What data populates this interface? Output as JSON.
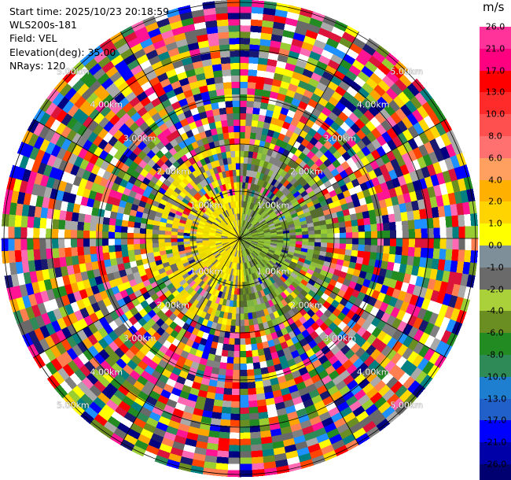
{
  "info": {
    "start_time": "Start time: 2025/10/23 20:18:59",
    "instrument": "WLS200s-181",
    "field": "Field: VEL",
    "elevation": "Elevation(deg): 35.00",
    "nrays": "NRays: 120"
  },
  "colorbar": {
    "unit": "m/s",
    "ticks": [
      "26.0",
      "21.0",
      "17.0",
      "13.0",
      "10.0",
      "8.0",
      "6.0",
      "4.0",
      "2.0",
      "1.0",
      "0.0",
      "-1.0",
      "-2.0",
      "-4.0",
      "-6.0",
      "-8.0",
      "-10.0",
      "-13.0",
      "-17.0",
      "-21.0",
      "-26.0",
      "-30.0"
    ],
    "colors": [
      "#ff3399",
      "#ff0080",
      "#ff0000",
      "#ff2b2b",
      "#ff5050",
      "#ff7070",
      "#ffa060",
      "#ffb000",
      "#ffd400",
      "#ffff00",
      "#7f8f99",
      "#6a6a6a",
      "#aad03a",
      "#6b8e23",
      "#228b22",
      "#2e8b57",
      "#1e7fd0",
      "#2060c8",
      "#0000ff",
      "#0000a8",
      "#000070"
    ]
  },
  "range_labels": [
    "1.00km",
    "2.00km",
    "3.00km",
    "4.00km",
    "5.00km"
  ],
  "palette": {
    "positive": [
      "#ff1493",
      "#ff69b4",
      "#ff0000",
      "#ff4500",
      "#ffa500",
      "#ffd700",
      "#ffff00",
      "#ff7f50",
      "#dc143c"
    ],
    "negative": [
      "#000080",
      "#0000ff",
      "#1e90ff",
      "#228b22",
      "#2e8b57",
      "#6b8e23",
      "#9acd32",
      "#008080",
      "#191970"
    ],
    "neutral": [
      "#808080",
      "#a9a9a9",
      "#696969"
    ],
    "near_yellow": [
      "#ffff00",
      "#f0e000",
      "#e8d800",
      "#ffd700"
    ],
    "near_green": [
      "#9acd32",
      "#6b8e23",
      "#7cb342",
      "#8fbc3f",
      "#556b2f"
    ]
  }
}
